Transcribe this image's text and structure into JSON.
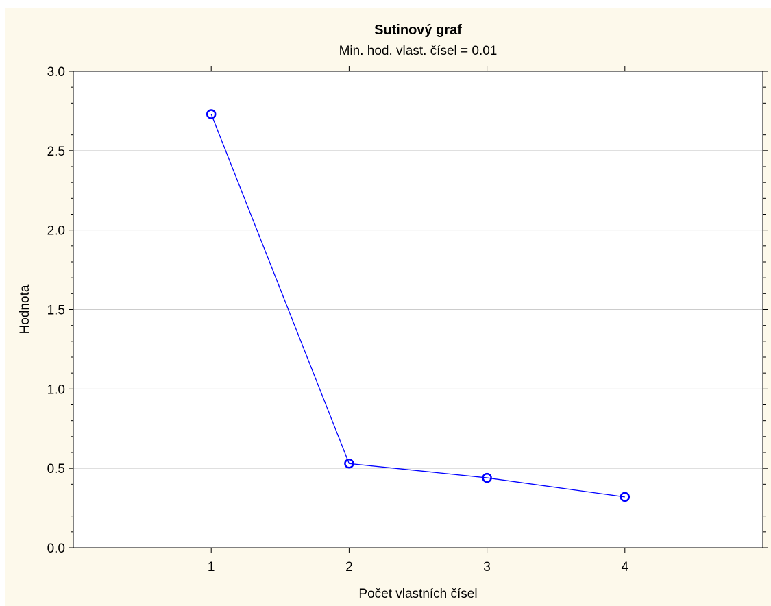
{
  "chart_data": {
    "type": "line",
    "title": "Sutinový graf",
    "subtitle": "Min. hod. vlast. čísel = 0.01",
    "xlabel": "Počet vlastních čísel",
    "ylabel": "Hodnota",
    "x": [
      1,
      2,
      3,
      4
    ],
    "xlim": [
      0,
      5
    ],
    "xticks": [
      "1",
      "2",
      "3",
      "4"
    ],
    "ylim": [
      0,
      3
    ],
    "yticks": [
      "0.0",
      "0.5",
      "1.0",
      "1.5",
      "2.0",
      "2.5",
      "3.0"
    ],
    "grid": true,
    "series": [
      {
        "values": [
          2.73,
          0.53,
          0.44,
          0.32
        ],
        "color": "#0000ff"
      }
    ],
    "colors": {
      "background": "#fdf9eb",
      "plot_background": "#ffffff",
      "grid": "#cccccc"
    }
  }
}
